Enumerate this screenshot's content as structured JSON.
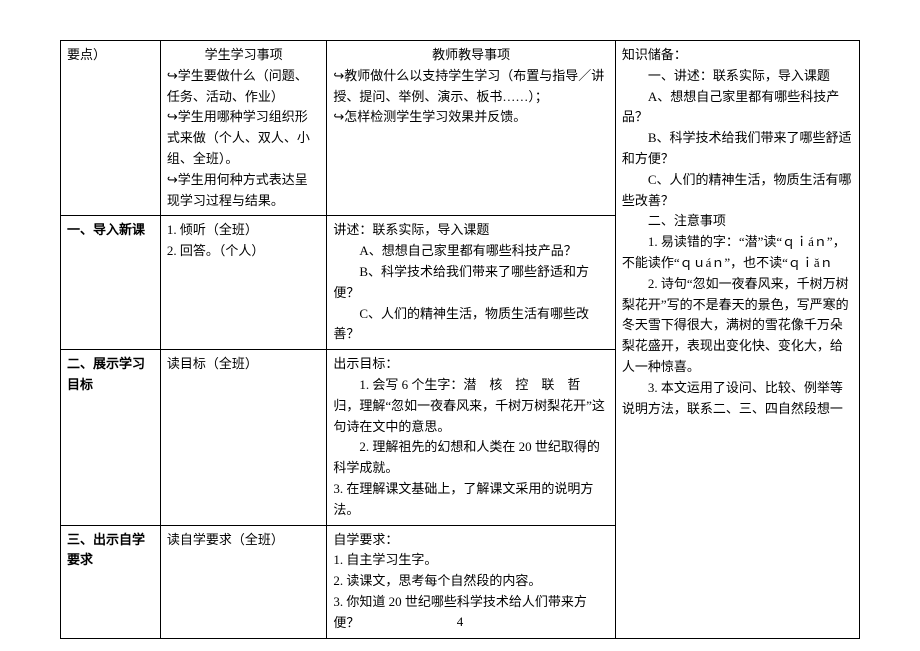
{
  "header_row": {
    "c1": "要点）",
    "c2_title": "学生学习事项",
    "c2_l1": "↪学生要做什么（问题、任务、活动、作业）",
    "c2_l2": "↪学生用哪种学习组织形式来做（个人、双人、小组、全班）。",
    "c2_l3": "↪学生用何种方式表达呈现学习过程与结果。",
    "c3_title": "教师教导事项",
    "c3_l1": "↪教师做什么以支持学生学习（布置与指导／讲授、提问、举例、演示、板书……）；",
    "c3_l2": "↪怎样检测学生学习效果并反馈。"
  },
  "row1": {
    "c1": "一、导入新课",
    "c2_l1": "1. 倾听（全班）",
    "c2_l2": "2. 回答。（个人）",
    "c3_l1": "讲述：联系实际，导入课题",
    "c3_l2": "　　A、想想自己家里都有哪些科技产品？",
    "c3_l3": "　　B、科学技术给我们带来了哪些舒适和方便？",
    "c3_l4": "　　C、人们的精神生活，物质生活有哪些改善？"
  },
  "row2": {
    "c1": "二、展示学习目标",
    "c2": "读目标（全班）",
    "c3_l1": "出示目标：",
    "c3_l2": "　　1. 会写 6 个生字：潜　核　控　联　哲　归，理解“忽如一夜春风来，千树万树梨花开”这句诗在文中的意思。",
    "c3_l3": "　　2. 理解祖先的幻想和人类在 20 世纪取得的科学成就。",
    "c3_l4": "3. 在理解课文基础上，了解课文采用的说明方法。"
  },
  "row3": {
    "c1": "三、出示自学要求",
    "c2": "读自学要求（全班）",
    "c3_l1": "自学要求：",
    "c3_l2": "1. 自主学习生字。",
    "c3_l3": "2. 读课文，思考每个自然段的内容。",
    "c3_l4": "3. 你知道 20 世纪哪些科学技术给人们带来方便？"
  },
  "side": {
    "l1": "知识储备：",
    "l2": "　　一、讲述：联系实际，导入课题",
    "l3": "　　A、想想自己家里都有哪些科技产品？",
    "l4": "　　B、科学技术给我们带来了哪些舒适和方便？",
    "l5": "　　C、人们的精神生活，物质生活有哪些改善？",
    "l6": "　　二、注意事项",
    "l7": "　　1. 易读错的字：“潜”读“ｑｉáｎ”，不能读作“ｑｕáｎ”，也不读“ｑｉǎｎ",
    "l8": "　　2. 诗句“忽如一夜春风来，千树万树梨花开”写的不是春天的景色，写严寒的冬天雪下得很大，满树的雪花像千万朵梨花盛开，表现出变化快、变化大，给人一种惊喜。",
    "l9": "　　3. 本文运用了设问、比较、例举等说明方法，联系二、三、四自然段想一"
  },
  "page_number": "4"
}
